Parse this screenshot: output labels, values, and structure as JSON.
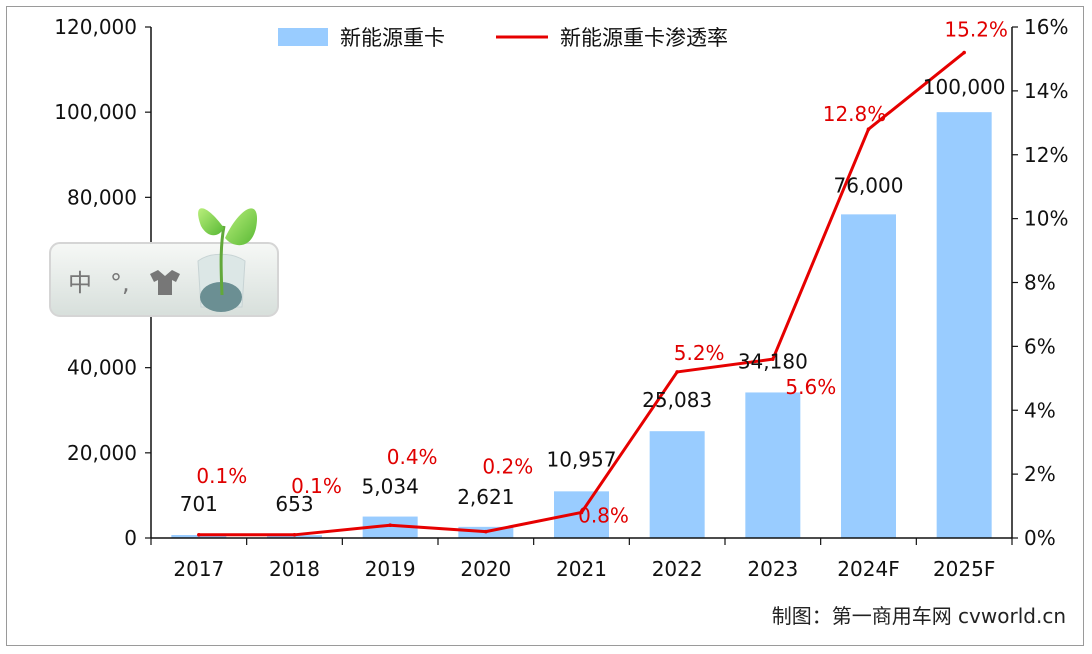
{
  "chart_data": {
    "type": "bar",
    "categories": [
      "2017",
      "2018",
      "2019",
      "2020",
      "2021",
      "2022",
      "2023",
      "2024F",
      "2025F"
    ],
    "series": [
      {
        "name": "新能源重卡",
        "type": "bar",
        "axis": "left",
        "values": [
          701,
          653,
          5034,
          2621,
          10957,
          25083,
          34180,
          76000,
          100000
        ],
        "labels": [
          "701",
          "653",
          "5,034",
          "2,621",
          "10,957",
          "25,083",
          "34,180",
          "76,000",
          "100,000"
        ]
      },
      {
        "name": "新能源重卡渗透率",
        "type": "line",
        "axis": "right",
        "values": [
          0.1,
          0.1,
          0.4,
          0.2,
          0.8,
          5.2,
          5.6,
          12.8,
          15.2
        ],
        "labels": [
          "0.1%",
          "0.1%",
          "0.4%",
          "0.2%",
          "0.8%",
          "5.2%",
          "5.6%",
          "12.8%",
          "15.2%"
        ]
      }
    ],
    "y_left": {
      "range": [
        0,
        120000
      ],
      "ticks": [
        0,
        20000,
        40000,
        60000,
        80000,
        100000,
        120000
      ],
      "tick_labels": [
        "0",
        "20,000",
        "40,000",
        "",
        "80,000",
        "100,000",
        "120,000"
      ]
    },
    "y_right": {
      "range": [
        0,
        16
      ],
      "ticks": [
        0,
        2,
        4,
        6,
        8,
        10,
        12,
        14,
        16
      ],
      "tick_labels": [
        "0%",
        "2%",
        "4%",
        "6%",
        "8%",
        "10%",
        "12%",
        "14%",
        "16%"
      ]
    },
    "legend": {
      "position": "top-center",
      "items": [
        "新能源重卡",
        "新能源重卡渗透率"
      ]
    },
    "grid": false,
    "credit": "制图：第一商用车网 cvworld.cn"
  },
  "overlay": {
    "ime_label": "中",
    "ime_punct": "°,"
  },
  "colors": {
    "bar": "#99ccff",
    "line": "#e60000",
    "rate_label": "#e00000",
    "axis": "#111111"
  }
}
